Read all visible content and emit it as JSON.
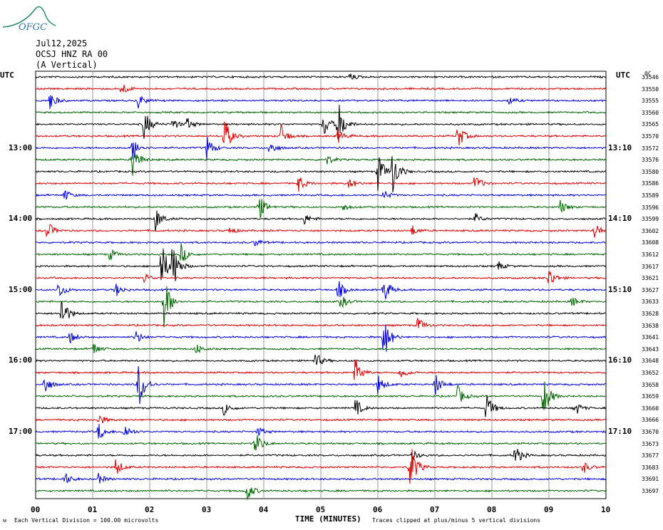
{
  "logo": {
    "text": "OFGC",
    "name": "OFGC"
  },
  "header": {
    "date": "Jul12,2025",
    "station": "OCSJ HNZ RA 00",
    "component": "(A Vertical)"
  },
  "axes": {
    "left_utc_label": "UTC",
    "right_utc_label": "UTC",
    "left_times": [
      "13:00",
      "14:00",
      "15:00",
      "16:00",
      "17:00"
    ],
    "right_times": [
      "13:10",
      "14:10",
      "15:10",
      "16:10",
      "17:10"
    ],
    "x_ticks": [
      "00",
      "01",
      "02",
      "03",
      "04",
      "05",
      "06",
      "07",
      "08",
      "09",
      "10"
    ],
    "x_label": "TIME (MINUTES)"
  },
  "footer": {
    "scale_note": "Each Vertical Division =  100.00 microvolts",
    "clip_note": "Traces clipped at plus/minus 5 vertical divisions"
  },
  "colors": [
    "#000000",
    "#dd0000",
    "#0000dd",
    "#006600"
  ],
  "chart_data": {
    "type": "line",
    "title": "",
    "xlabel": "TIME (MINUTES)",
    "ylabel": "UTC",
    "xlim": [
      0,
      10
    ],
    "grid": true,
    "trace_count": 36,
    "color_cycle": [
      "black",
      "red",
      "blue",
      "green"
    ],
    "right_values": [
      "33546",
      "33550",
      "33555",
      "33560",
      "33565",
      "33570",
      "33572",
      "33576",
      "33580",
      "33586",
      "33589",
      "33596",
      "33599",
      "33602",
      "33608",
      "33612",
      "33617",
      "33621",
      "33627",
      "33633",
      "33628",
      "33638",
      "33641",
      "33643",
      "33648",
      "33652",
      "33658",
      "33659",
      "33660",
      "33666",
      "33670",
      "33673",
      "33677",
      "33683",
      "33691",
      "33697"
    ],
    "events": [
      {
        "trace": 0,
        "minute": 5.5,
        "amp": 0.4
      },
      {
        "trace": 1,
        "minute": 1.5,
        "amp": 0.7
      },
      {
        "trace": 2,
        "minute": 0.25,
        "amp": 0.9
      },
      {
        "trace": 2,
        "minute": 1.8,
        "amp": 0.7
      },
      {
        "trace": 2,
        "minute": 8.3,
        "amp": 0.4
      },
      {
        "trace": 4,
        "minute": 1.9,
        "amp": 1.5
      },
      {
        "trace": 4,
        "minute": 2.4,
        "amp": 0.6
      },
      {
        "trace": 4,
        "minute": 2.65,
        "amp": 0.6
      },
      {
        "trace": 4,
        "minute": 5.05,
        "amp": 1.3
      },
      {
        "trace": 4,
        "minute": 5.3,
        "amp": 2.3
      },
      {
        "trace": 5,
        "minute": 3.3,
        "amp": 2.0
      },
      {
        "trace": 5,
        "minute": 4.3,
        "amp": 1.1
      },
      {
        "trace": 5,
        "minute": 5.3,
        "amp": 0.7
      },
      {
        "trace": 5,
        "minute": 7.4,
        "amp": 1.3
      },
      {
        "trace": 6,
        "minute": 1.7,
        "amp": 1.2
      },
      {
        "trace": 6,
        "minute": 3.0,
        "amp": 1.2
      },
      {
        "trace": 6,
        "minute": 4.1,
        "amp": 0.7
      },
      {
        "trace": 7,
        "minute": 1.7,
        "amp": 1.6
      },
      {
        "trace": 7,
        "minute": 5.1,
        "amp": 0.5
      },
      {
        "trace": 8,
        "minute": 6.0,
        "amp": 1.9
      },
      {
        "trace": 8,
        "minute": 6.25,
        "amp": 2.3
      },
      {
        "trace": 9,
        "minute": 4.6,
        "amp": 0.9
      },
      {
        "trace": 9,
        "minute": 5.5,
        "amp": 0.6
      },
      {
        "trace": 9,
        "minute": 7.7,
        "amp": 0.9
      },
      {
        "trace": 10,
        "minute": 0.5,
        "amp": 0.6
      },
      {
        "trace": 10,
        "minute": 6.1,
        "amp": 0.5
      },
      {
        "trace": 11,
        "minute": 3.9,
        "amp": 1.5
      },
      {
        "trace": 11,
        "minute": 5.4,
        "amp": 0.4
      },
      {
        "trace": 11,
        "minute": 9.2,
        "amp": 0.7
      },
      {
        "trace": 12,
        "minute": 2.1,
        "amp": 1.2
      },
      {
        "trace": 12,
        "minute": 4.7,
        "amp": 0.6
      },
      {
        "trace": 12,
        "minute": 7.7,
        "amp": 0.5
      },
      {
        "trace": 13,
        "minute": 0.2,
        "amp": 1.0
      },
      {
        "trace": 13,
        "minute": 3.4,
        "amp": 0.4
      },
      {
        "trace": 13,
        "minute": 6.6,
        "amp": 0.5
      },
      {
        "trace": 13,
        "minute": 9.8,
        "amp": 0.8
      },
      {
        "trace": 14,
        "minute": 3.85,
        "amp": 0.4
      },
      {
        "trace": 15,
        "minute": 1.3,
        "amp": 0.6
      },
      {
        "trace": 15,
        "minute": 2.55,
        "amp": 1.0
      },
      {
        "trace": 16,
        "minute": 2.2,
        "amp": 2.5
      },
      {
        "trace": 16,
        "minute": 2.4,
        "amp": 2.3
      },
      {
        "trace": 16,
        "minute": 8.1,
        "amp": 0.5
      },
      {
        "trace": 17,
        "minute": 1.9,
        "amp": 0.5
      },
      {
        "trace": 17,
        "minute": 9.0,
        "amp": 1.0
      },
      {
        "trace": 18,
        "minute": 0.4,
        "amp": 0.9
      },
      {
        "trace": 18,
        "minute": 1.4,
        "amp": 0.7
      },
      {
        "trace": 18,
        "minute": 5.3,
        "amp": 1.0
      },
      {
        "trace": 18,
        "minute": 6.1,
        "amp": 1.4
      },
      {
        "trace": 19,
        "minute": 2.25,
        "amp": 2.6
      },
      {
        "trace": 19,
        "minute": 5.35,
        "amp": 0.7
      },
      {
        "trace": 19,
        "minute": 9.4,
        "amp": 0.5
      },
      {
        "trace": 20,
        "minute": 0.45,
        "amp": 1.8
      },
      {
        "trace": 21,
        "minute": 6.7,
        "amp": 0.8
      },
      {
        "trace": 22,
        "minute": 0.6,
        "amp": 0.6
      },
      {
        "trace": 22,
        "minute": 1.75,
        "amp": 0.7
      },
      {
        "trace": 22,
        "minute": 6.1,
        "amp": 2.4
      },
      {
        "trace": 23,
        "minute": 1.0,
        "amp": 0.7
      },
      {
        "trace": 23,
        "minute": 2.8,
        "amp": 0.6
      },
      {
        "trace": 24,
        "minute": 4.9,
        "amp": 0.9
      },
      {
        "trace": 25,
        "minute": 5.6,
        "amp": 1.5
      },
      {
        "trace": 25,
        "minute": 6.4,
        "amp": 0.7
      },
      {
        "trace": 26,
        "minute": 0.15,
        "amp": 1.0
      },
      {
        "trace": 26,
        "minute": 1.8,
        "amp": 2.6
      },
      {
        "trace": 26,
        "minute": 6.0,
        "amp": 1.0
      },
      {
        "trace": 26,
        "minute": 7.0,
        "amp": 1.2
      },
      {
        "trace": 27,
        "minute": 7.4,
        "amp": 1.0
      },
      {
        "trace": 27,
        "minute": 8.9,
        "amp": 2.2
      },
      {
        "trace": 28,
        "minute": 3.3,
        "amp": 0.7
      },
      {
        "trace": 28,
        "minute": 5.6,
        "amp": 1.0
      },
      {
        "trace": 28,
        "minute": 7.9,
        "amp": 1.5
      },
      {
        "trace": 28,
        "minute": 9.45,
        "amp": 0.8
      },
      {
        "trace": 29,
        "minute": 1.1,
        "amp": 0.6
      },
      {
        "trace": 30,
        "minute": 1.1,
        "amp": 0.9
      },
      {
        "trace": 30,
        "minute": 1.55,
        "amp": 0.8
      },
      {
        "trace": 30,
        "minute": 3.9,
        "amp": 0.5
      },
      {
        "trace": 31,
        "minute": 3.85,
        "amp": 1.2
      },
      {
        "trace": 32,
        "minute": 6.6,
        "amp": 0.5
      },
      {
        "trace": 32,
        "minute": 8.4,
        "amp": 1.1
      },
      {
        "trace": 33,
        "minute": 1.4,
        "amp": 0.9
      },
      {
        "trace": 33,
        "minute": 6.55,
        "amp": 3.0
      },
      {
        "trace": 33,
        "minute": 9.6,
        "amp": 0.6
      },
      {
        "trace": 34,
        "minute": 0.5,
        "amp": 0.7
      },
      {
        "trace": 34,
        "minute": 1.1,
        "amp": 0.5
      },
      {
        "trace": 35,
        "minute": 3.7,
        "amp": 1.0
      }
    ]
  }
}
